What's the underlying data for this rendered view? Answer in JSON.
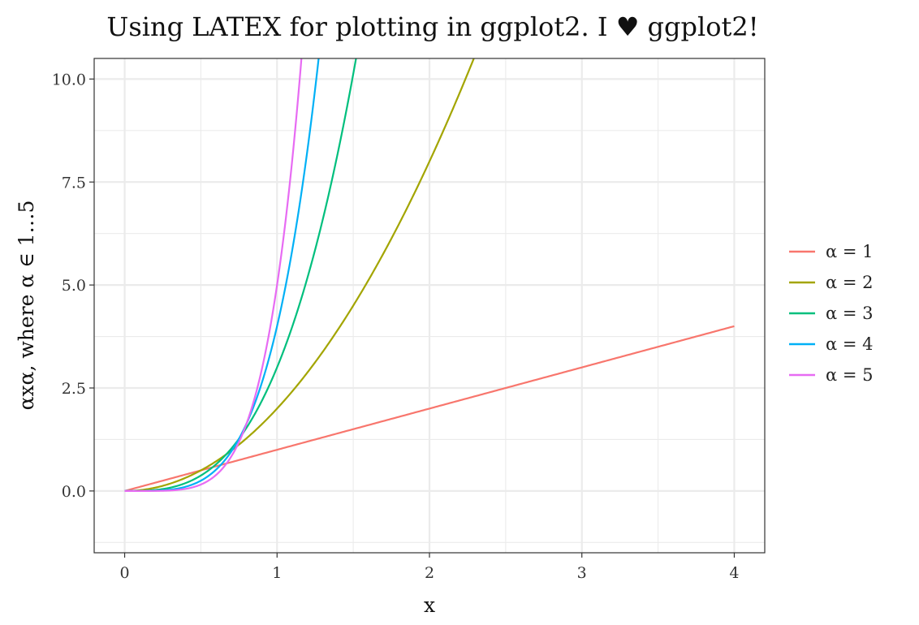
{
  "chart_data": {
    "type": "line",
    "title": "Using LATEX for plotting in ggplot2. I ♥ ggplot2!",
    "xlabel": "x",
    "ylabel": "αxα, where α ∈ 1…5",
    "xlim": [
      -0.2,
      4.2
    ],
    "ylim": [
      -1.5,
      10.5
    ],
    "x_ticks": [
      "0",
      "1",
      "2",
      "3",
      "4"
    ],
    "y_ticks": [
      "0.0",
      "2.5",
      "5.0",
      "7.5",
      "10.0"
    ],
    "grid": true,
    "legend_position": "right",
    "series": [
      {
        "name": "α = 1",
        "alpha": 1,
        "color": "#F8766D",
        "x": [
          0,
          4
        ]
      },
      {
        "name": "α = 2",
        "alpha": 2,
        "color": "#A3A500",
        "x": [
          0,
          4
        ]
      },
      {
        "name": "α = 3",
        "alpha": 3,
        "color": "#00BF7D",
        "x": [
          0,
          4
        ]
      },
      {
        "name": "α = 4",
        "alpha": 4,
        "color": "#00B0F6",
        "x": [
          0,
          4
        ]
      },
      {
        "name": "α = 5",
        "alpha": 5,
        "color": "#E76BF3",
        "x": [
          0,
          4
        ]
      }
    ]
  }
}
